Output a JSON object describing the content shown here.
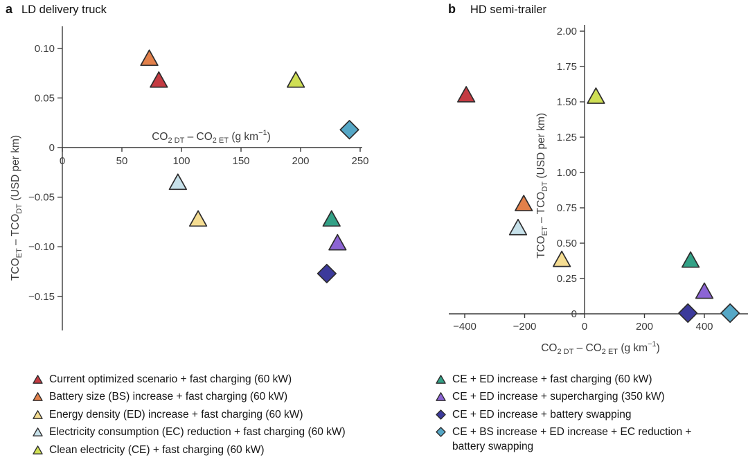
{
  "figure": {
    "background": "#ffffff",
    "axis_color": "#3a3a3a",
    "marker_outline": "#2e2d2e"
  },
  "colors": {
    "red": "#c43b42",
    "orange": "#e2804a",
    "pale_yellow": "#f5dd92",
    "light_blue": "#c7e1ea",
    "yellow_green": "#cfdf54",
    "green": "#33a186",
    "purple": "#8c64d4",
    "indigo": "#3c3a9b",
    "teal": "#55a7c6"
  },
  "panel_a": {
    "tag": "a",
    "title": "LD delivery truck"
  },
  "panel_b": {
    "tag": "b",
    "title": "HD semi-trailer"
  },
  "chart_data": [
    {
      "type": "scatter",
      "panel": "a",
      "title": "LD delivery truck",
      "xlabel": "CO<sub>2 DT</sub> – CO<sub>2 ET</sub> (g km<sup>−1</sup>)",
      "ylabel": "TCO<sub>ET</sub> – TCO<sub>DT</sub> (USD per km)",
      "xlim": [
        0,
        250
      ],
      "ylim": [
        -0.18,
        0.122
      ],
      "grid": false,
      "xticks": {
        "values": [
          0,
          50,
          100,
          150,
          200,
          250
        ],
        "labels": [
          "0",
          "50",
          "100",
          "150",
          "200",
          "250"
        ]
      },
      "yticks": {
        "values": [
          0.1,
          0.05,
          0,
          -0.05,
          -0.1,
          -0.15
        ],
        "labels": [
          "0.10",
          "0.05",
          "0",
          "−0.05",
          "−0.10",
          "−0.15"
        ]
      },
      "series": [
        {
          "name": "Current optimized scenario + fast charging (60 kW)",
          "marker": "triangle",
          "color_key": "red",
          "points": [
            [
              81,
              0.068
            ]
          ]
        },
        {
          "name": "Battery size (BS) increase + fast charging (60 kW)",
          "marker": "triangle",
          "color_key": "orange",
          "points": [
            [
              73,
              0.09
            ]
          ]
        },
        {
          "name": "Energy density (ED) increase + fast charging (60 kW)",
          "marker": "triangle",
          "color_key": "pale_yellow",
          "points": [
            [
              114,
              -0.072
            ]
          ]
        },
        {
          "name": "Electricity consumption (EC) reduction + fast charging (60 kW)",
          "marker": "triangle",
          "color_key": "light_blue",
          "points": [
            [
              97,
              -0.035
            ]
          ]
        },
        {
          "name": "Clean electricity (CE) + fast charging (60 kW)",
          "marker": "triangle",
          "color_key": "yellow_green",
          "points": [
            [
              196,
              0.068
            ]
          ]
        },
        {
          "name": "CE + ED increase + fast charging (60 kW)",
          "marker": "triangle",
          "color_key": "green",
          "points": [
            [
              226,
              -0.072
            ]
          ]
        },
        {
          "name": "CE + ED increase + supercharging (350 kW)",
          "marker": "triangle",
          "color_key": "purple",
          "points": [
            [
              231,
              -0.096
            ]
          ]
        },
        {
          "name": "CE + ED increase + battery swapping",
          "marker": "diamond",
          "color_key": "indigo",
          "points": [
            [
              222,
              -0.127
            ]
          ]
        },
        {
          "name": "CE + BS increase + ED increase + EC reduction + battery swapping",
          "marker": "diamond",
          "color_key": "teal",
          "points": [
            [
              241,
              0.018
            ]
          ]
        }
      ]
    },
    {
      "type": "scatter",
      "panel": "b",
      "title": "HD semi-trailer",
      "xlabel": "CO<sub>2 DT</sub> – CO<sub>2 ET</sub> (g km<sup>−1</sup>)",
      "ylabel": "TCO<sub>ET</sub> – TCO<sub>DT</sub> (USD per km)",
      "xlim": [
        -520,
        560
      ],
      "ylim": [
        0,
        2.05
      ],
      "grid": false,
      "xticks": {
        "values": [
          -400,
          -200,
          0,
          200,
          400
        ],
        "labels": [
          "−400",
          "−200",
          "0",
          "200",
          "400"
        ]
      },
      "yticks": {
        "values": [
          2.0,
          1.75,
          1.5,
          1.25,
          1.0,
          0.75,
          0.5,
          0.25,
          0
        ],
        "labels": [
          "2.00",
          "1.75",
          "1.50",
          "1.25",
          "1.00",
          "0.75",
          "0.50",
          "0.25",
          "0"
        ]
      },
      "series": [
        {
          "name": "Current optimized scenario + fast charging (60 kW)",
          "marker": "triangle",
          "color_key": "red",
          "points": [
            [
              -395,
              1.55
            ]
          ]
        },
        {
          "name": "Battery size (BS) increase + fast charging (60 kW)",
          "marker": "triangle",
          "color_key": "orange",
          "points": [
            [
              -203,
              0.78
            ]
          ]
        },
        {
          "name": "Energy density (ED) increase + fast charging (60 kW)",
          "marker": "triangle",
          "color_key": "pale_yellow",
          "points": [
            [
              -76,
              0.385
            ]
          ]
        },
        {
          "name": "Electricity consumption (EC) reduction + fast charging (60 kW)",
          "marker": "triangle",
          "color_key": "light_blue",
          "points": [
            [
              -222,
              0.61
            ]
          ]
        },
        {
          "name": "Clean electricity (CE) + fast charging (60 kW)",
          "marker": "triangle",
          "color_key": "yellow_green",
          "points": [
            [
              38,
              1.54
            ]
          ]
        },
        {
          "name": "CE + ED increase + fast charging (60 kW)",
          "marker": "triangle",
          "color_key": "green",
          "points": [
            [
              354,
              0.38
            ]
          ]
        },
        {
          "name": "CE + ED increase + supercharging (350 kW)",
          "marker": "triangle",
          "color_key": "purple",
          "points": [
            [
              400,
              0.16
            ]
          ]
        },
        {
          "name": "CE + ED increase + battery swapping",
          "marker": "diamond",
          "color_key": "indigo",
          "points": [
            [
              345,
              0.005
            ]
          ]
        },
        {
          "name": "CE + BS increase + ED increase + EC reduction + battery swapping",
          "marker": "diamond",
          "color_key": "teal",
          "points": [
            [
              486,
              0.005
            ]
          ]
        }
      ]
    }
  ],
  "legend": {
    "columns": [
      {
        "side": "left",
        "items": [
          {
            "marker": "triangle",
            "color_key": "red",
            "label": "Current optimized scenario + fast charging (60 kW)"
          },
          {
            "marker": "triangle",
            "color_key": "orange",
            "label": "Battery size (BS) increase + fast charging (60 kW)"
          },
          {
            "marker": "triangle",
            "color_key": "pale_yellow",
            "label": "Energy density (ED) increase + fast charging (60 kW)"
          },
          {
            "marker": "triangle",
            "color_key": "light_blue",
            "label": "Electricity consumption (EC) reduction + fast charging (60 kW)"
          },
          {
            "marker": "triangle",
            "color_key": "yellow_green",
            "label": "Clean electricity (CE) + fast charging (60 kW)"
          }
        ]
      },
      {
        "side": "right",
        "items": [
          {
            "marker": "triangle",
            "color_key": "green",
            "label": "CE + ED increase + fast charging (60 kW)"
          },
          {
            "marker": "triangle",
            "color_key": "purple",
            "label": "CE + ED increase + supercharging (350 kW)"
          },
          {
            "marker": "diamond",
            "color_key": "indigo",
            "label": "CE + ED increase + battery swapping"
          },
          {
            "marker": "diamond",
            "color_key": "teal",
            "label": "CE + BS increase + ED increase + EC reduction + battery swapping"
          }
        ]
      }
    ]
  }
}
